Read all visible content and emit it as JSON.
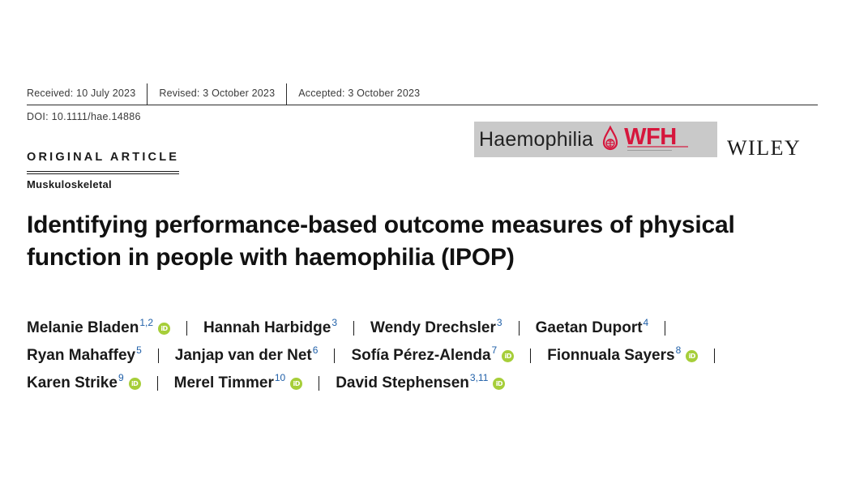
{
  "dates": {
    "received": "Received: 10 July 2023",
    "revised": "Revised: 3 October 2023",
    "accepted": "Accepted: 3 October 2023"
  },
  "doi": "DOI: 10.1111/hae.14886",
  "journal": {
    "name": "Haemophilia",
    "partner_logo": "WFH",
    "publisher": "WILEY"
  },
  "article_type": "ORIGINAL ARTICLE",
  "section": "Muskuloskeletal",
  "title": "Identifying performance-based outcome measures of physical function in people with haemophilia (IPOP)",
  "authors": [
    [
      {
        "name": "Melanie Bladen",
        "aff": "1,2",
        "orcid": true
      },
      {
        "name": "Hannah Harbidge",
        "aff": "3",
        "orcid": false
      },
      {
        "name": "Wendy Drechsler",
        "aff": "3",
        "orcid": false
      },
      {
        "name": "Gaetan Duport",
        "aff": "4",
        "orcid": false
      }
    ],
    [
      {
        "name": "Ryan Mahaffey",
        "aff": "5",
        "orcid": false
      },
      {
        "name": "Janjap van der Net",
        "aff": "6",
        "orcid": false
      },
      {
        "name": "Sofía Pérez-Alenda",
        "aff": "7",
        "orcid": true
      },
      {
        "name": "Fionnuala Sayers",
        "aff": "8",
        "orcid": true
      }
    ],
    [
      {
        "name": "Karen Strike",
        "aff": "9",
        "orcid": true
      },
      {
        "name": "Merel Timmer",
        "aff": "10",
        "orcid": true
      },
      {
        "name": "David Stephensen",
        "aff": "3,11",
        "orcid": true
      }
    ]
  ],
  "icons": {
    "orcid": "orcid-icon",
    "logo": "wfh-logo-icon"
  },
  "colors": {
    "orcid_green": "#a6ce39",
    "wfh_red": "#d6163c",
    "affiliation_blue": "#1f5fa8",
    "badge_gray": "#c9c9c9"
  }
}
